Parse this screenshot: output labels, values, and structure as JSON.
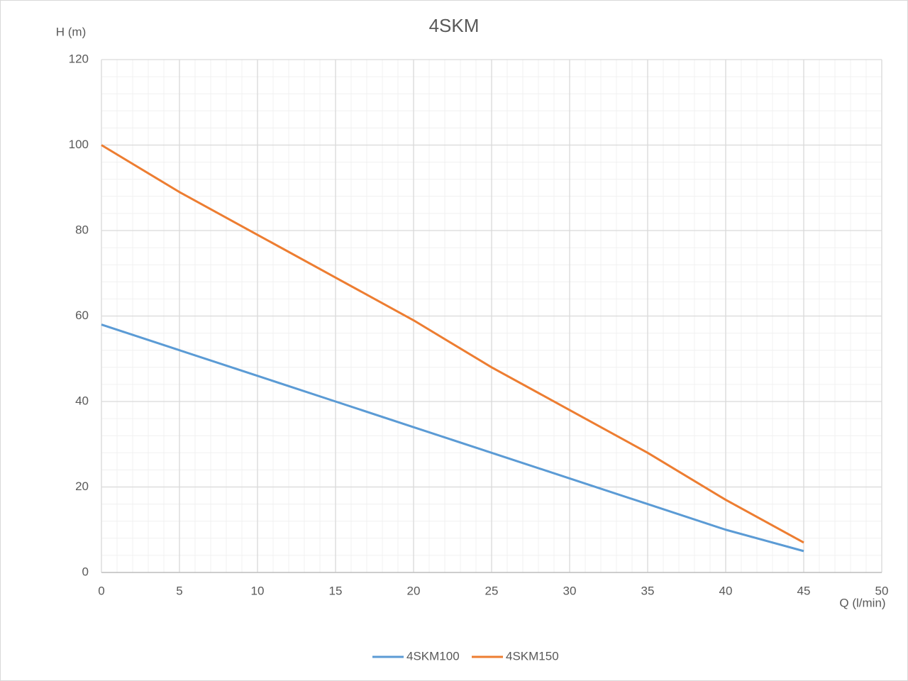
{
  "chart_data": {
    "type": "line",
    "title": "4SKM",
    "x_label": "Q (l/min)",
    "y_label": "H (m)",
    "x": [
      0,
      5,
      10,
      15,
      20,
      25,
      30,
      35,
      40,
      45
    ],
    "series": [
      {
        "name": "4SKM100",
        "color": "#5b9bd5",
        "values": [
          58,
          52,
          46,
          40,
          34,
          28,
          22,
          16,
          10,
          5
        ]
      },
      {
        "name": "4SKM150",
        "color": "#ed7d31",
        "values": [
          100,
          89,
          79,
          69,
          59,
          48,
          38,
          28,
          17,
          7
        ]
      }
    ],
    "xlim": [
      0,
      50
    ],
    "xticks": [
      0,
      5,
      10,
      15,
      20,
      25,
      30,
      35,
      40,
      45,
      50
    ],
    "ylim": [
      0,
      120
    ],
    "yticks": [
      0,
      20,
      40,
      60,
      80,
      100,
      120
    ],
    "grid": true,
    "legend": "bottom"
  }
}
